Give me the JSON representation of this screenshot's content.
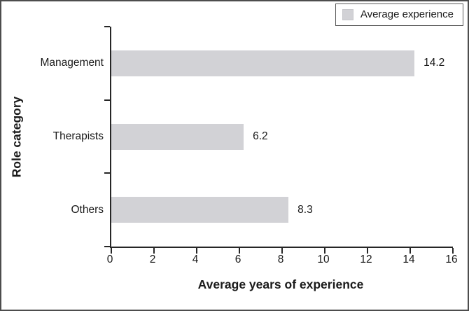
{
  "figure": {
    "background": "#ffffff",
    "border_color": "#4d4d4d"
  },
  "legend": {
    "label": "Average experience",
    "position": "top-right",
    "border_color": "#595959",
    "swatch_color": "#d2d2d6"
  },
  "chart_data": {
    "type": "bar",
    "orientation": "horizontal",
    "categories": [
      "Management",
      "Therapists",
      "Others"
    ],
    "values": [
      14.2,
      6.2,
      8.3
    ],
    "value_labels": [
      "14.2",
      "6.2",
      "8.3"
    ],
    "xlabel": "Average years of experience",
    "ylabel": "Role category",
    "xlim": [
      0,
      16
    ],
    "xticks": [
      0,
      2,
      4,
      6,
      8,
      10,
      12,
      14,
      16
    ],
    "grid": false,
    "legend_entries": [
      "Average experience"
    ],
    "legend_position": "top-right",
    "bar_color": "#d2d2d6",
    "axis_color": "#262626",
    "text_color": "#1a1a1a"
  }
}
